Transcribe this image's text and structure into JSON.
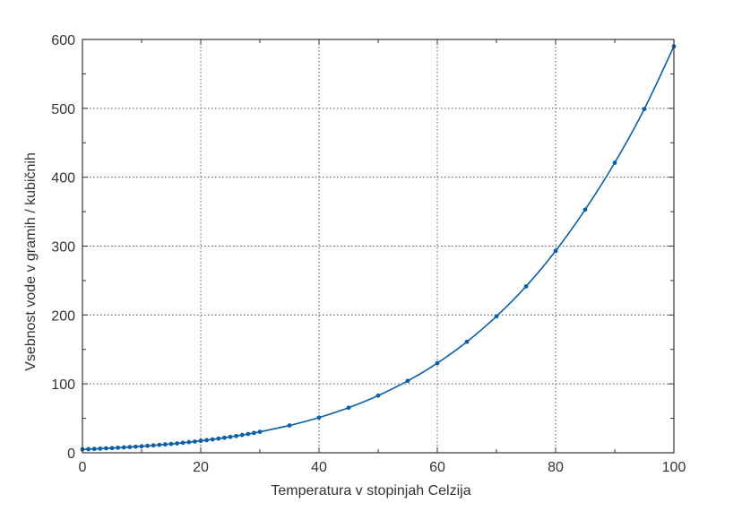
{
  "chart_data": {
    "type": "line",
    "title": "",
    "xlabel": "Temperatura v stopinjah Celzija",
    "ylabel": "Vsebnost vode v gramih / kubičnih",
    "xlim": [
      0,
      100
    ],
    "ylim": [
      0,
      600
    ],
    "xticks": [
      0,
      20,
      40,
      60,
      80,
      100
    ],
    "yticks": [
      0,
      100,
      200,
      300,
      400,
      500,
      600
    ],
    "grid": true,
    "colors": {
      "series": "#0a5fa8",
      "grid": "#555555",
      "axis": "#333333"
    },
    "series": [
      {
        "x": [
          0,
          1,
          2,
          3,
          4,
          5,
          6,
          7,
          8,
          9,
          10,
          11,
          12,
          13,
          14,
          15,
          16,
          17,
          18,
          19,
          20,
          21,
          22,
          23,
          24,
          25,
          26,
          27,
          28,
          29,
          30,
          35,
          40,
          45,
          50,
          55,
          60,
          65,
          70,
          75,
          80,
          85,
          90,
          95,
          100
        ],
        "values": [
          4.8,
          5.2,
          5.6,
          6.0,
          6.4,
          6.8,
          7.3,
          7.8,
          8.3,
          8.8,
          9.4,
          10.0,
          10.7,
          11.4,
          12.1,
          12.8,
          13.6,
          14.5,
          15.4,
          16.3,
          17.3,
          18.3,
          19.4,
          20.6,
          21.8,
          23.0,
          24.4,
          25.8,
          27.2,
          28.8,
          30.4,
          39.6,
          51.1,
          65.4,
          83.0,
          104.3,
          130.1,
          161.1,
          198.1,
          241.5,
          293.0,
          353.0,
          421.0,
          499.0,
          590.0
        ]
      }
    ]
  }
}
